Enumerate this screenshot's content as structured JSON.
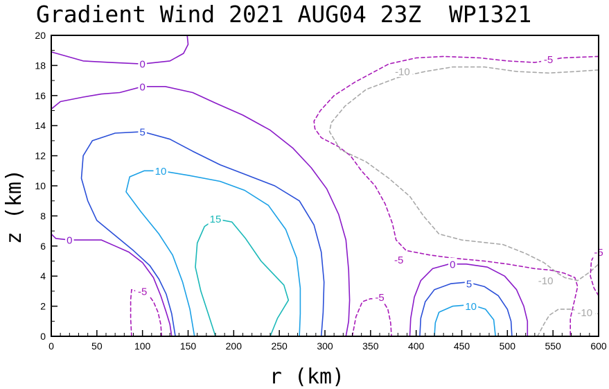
{
  "chart_data": {
    "type": "contour",
    "title": "Gradient Wind 2021 AUG04 23Z  WP1321",
    "xlabel": "r (km)",
    "ylabel": "z (km)",
    "xlim": [
      0,
      600
    ],
    "ylim": [
      0,
      20
    ],
    "xticks": [
      0,
      50,
      100,
      150,
      200,
      250,
      300,
      350,
      400,
      450,
      500,
      550,
      600
    ],
    "yticks": [
      0,
      2,
      4,
      6,
      8,
      10,
      12,
      14,
      16,
      18,
      20
    ],
    "colors": {
      "c0": "#8a1ac8",
      "c5": "#2a4fd8",
      "c10": "#1aa0e6",
      "c15": "#1ab8b8",
      "cn5": "#a81ab8",
      "cn10": "#a8a8a8"
    },
    "contours": [
      {
        "name": "contour-0-top-left",
        "level": 0,
        "color": "c0",
        "dashed": false,
        "points": [
          [
            0,
            18.9
          ],
          [
            35,
            18.3
          ],
          [
            65,
            18.2
          ],
          [
            100,
            18.1
          ],
          [
            130,
            18.3
          ],
          [
            145,
            18.8
          ],
          [
            150,
            19.4
          ],
          [
            149,
            20
          ]
        ]
      },
      {
        "name": "contour-0-upper",
        "level": 0,
        "color": "c0",
        "dashed": false,
        "points": [
          [
            0,
            15.1
          ],
          [
            10,
            15.6
          ],
          [
            35,
            15.9
          ],
          [
            55,
            16.1
          ],
          [
            75,
            16.2
          ],
          [
            100,
            16.6
          ],
          [
            125,
            16.6
          ],
          [
            155,
            16.2
          ],
          [
            180,
            15.5
          ],
          [
            210,
            14.7
          ],
          [
            240,
            13.7
          ],
          [
            265,
            12.5
          ],
          [
            285,
            11.2
          ],
          [
            302,
            9.8
          ],
          [
            315,
            8.1
          ],
          [
            323,
            6.4
          ],
          [
            326,
            4.4
          ],
          [
            327,
            2.4
          ],
          [
            326,
            1.0
          ],
          [
            323,
            0
          ]
        ]
      },
      {
        "name": "contour-0-lower-left",
        "level": 0,
        "color": "c0",
        "dashed": false,
        "points": [
          [
            0,
            6.8
          ],
          [
            5,
            6.5
          ],
          [
            20,
            6.4
          ],
          [
            55,
            6.4
          ],
          [
            70,
            6.0
          ],
          [
            85,
            5.6
          ],
          [
            100,
            4.9
          ],
          [
            112,
            3.9
          ],
          [
            120,
            2.7
          ],
          [
            126,
            1.6
          ],
          [
            130,
            0.8
          ],
          [
            132,
            0
          ]
        ]
      },
      {
        "name": "contour-5-outer",
        "level": 5,
        "color": "c5",
        "dashed": false,
        "points": [
          [
            136,
            0
          ],
          [
            132,
            1.5
          ],
          [
            126,
            2.8
          ],
          [
            118,
            3.8
          ],
          [
            108,
            4.7
          ],
          [
            90,
            5.7
          ],
          [
            68,
            6.8
          ],
          [
            50,
            7.7
          ],
          [
            40,
            9.0
          ],
          [
            33,
            10.5
          ],
          [
            35,
            12.0
          ],
          [
            45,
            13.0
          ],
          [
            70,
            13.5
          ],
          [
            100,
            13.6
          ],
          [
            130,
            13.1
          ],
          [
            155,
            12.3
          ],
          [
            185,
            11.4
          ],
          [
            215,
            10.7
          ],
          [
            245,
            10.0
          ],
          [
            272,
            9.0
          ],
          [
            288,
            7.4
          ],
          [
            296,
            5.6
          ],
          [
            299,
            3.6
          ],
          [
            298,
            1.6
          ],
          [
            296,
            0
          ]
        ]
      },
      {
        "name": "contour-10-outer",
        "level": 10,
        "color": "c10",
        "dashed": false,
        "points": [
          [
            157,
            0
          ],
          [
            152,
            1.8
          ],
          [
            144,
            3.6
          ],
          [
            133,
            5.4
          ],
          [
            118,
            6.8
          ],
          [
            98,
            8.3
          ],
          [
            82,
            9.6
          ],
          [
            86,
            10.6
          ],
          [
            102,
            11.0
          ],
          [
            120,
            11.0
          ],
          [
            150,
            10.7
          ],
          [
            185,
            10.3
          ],
          [
            212,
            9.7
          ],
          [
            238,
            8.7
          ],
          [
            257,
            7.1
          ],
          [
            269,
            5.2
          ],
          [
            273,
            3.2
          ],
          [
            273,
            1.5
          ],
          [
            272,
            0
          ]
        ]
      },
      {
        "name": "contour-15-core",
        "level": 15,
        "color": "c15",
        "dashed": false,
        "points": [
          [
            180,
            0
          ],
          [
            172,
            1.5
          ],
          [
            164,
            3.0
          ],
          [
            158,
            4.6
          ],
          [
            160,
            6.2
          ],
          [
            168,
            7.3
          ],
          [
            180,
            7.8
          ],
          [
            198,
            7.6
          ],
          [
            213,
            6.5
          ],
          [
            230,
            5.0
          ],
          [
            255,
            3.4
          ],
          [
            260,
            2.4
          ],
          [
            248,
            1.2
          ],
          [
            240,
            0
          ]
        ]
      },
      {
        "name": "contour-neg5-upper-right",
        "level": -5,
        "color": "cn5",
        "dashed": true,
        "points": [
          [
            600,
            18.6
          ],
          [
            560,
            18.5
          ],
          [
            530,
            18.2
          ],
          [
            500,
            18.3
          ],
          [
            470,
            18.5
          ],
          [
            430,
            18.6
          ],
          [
            400,
            18.5
          ],
          [
            370,
            18.1
          ],
          [
            333,
            16.9
          ],
          [
            310,
            16.0
          ],
          [
            295,
            15.0
          ],
          [
            288,
            14.3
          ],
          [
            289,
            13.8
          ],
          [
            296,
            13.2
          ],
          [
            315,
            12.6
          ],
          [
            328,
            12.0
          ],
          [
            340,
            11.0
          ],
          [
            355,
            10.0
          ],
          [
            366,
            8.8
          ],
          [
            374,
            7.5
          ],
          [
            378,
            6.4
          ],
          [
            389,
            5.7
          ],
          [
            415,
            5.4
          ],
          [
            440,
            5.2
          ],
          [
            475,
            5.0
          ],
          [
            500,
            4.8
          ],
          [
            530,
            4.5
          ],
          [
            547,
            4.4
          ],
          [
            562,
            4.2
          ],
          [
            574,
            3.9
          ],
          [
            577,
            3.3
          ],
          [
            574,
            2.5
          ],
          [
            569,
            1.2
          ],
          [
            569,
            0
          ]
        ]
      },
      {
        "name": "contour-neg10-upper-right",
        "level": -10,
        "color": "cn10",
        "dashed": true,
        "points": [
          [
            600,
            17.7
          ],
          [
            575,
            17.6
          ],
          [
            545,
            17.5
          ],
          [
            510,
            17.6
          ],
          [
            475,
            17.9
          ],
          [
            440,
            17.9
          ],
          [
            410,
            17.6
          ],
          [
            380,
            17.2
          ],
          [
            345,
            16.4
          ],
          [
            322,
            15.3
          ],
          [
            307,
            14.2
          ],
          [
            305,
            13.6
          ],
          [
            317,
            12.4
          ],
          [
            345,
            11.6
          ],
          [
            370,
            10.5
          ],
          [
            393,
            9.3
          ],
          [
            408,
            8.0
          ],
          [
            425,
            6.8
          ],
          [
            450,
            6.4
          ],
          [
            495,
            6.1
          ],
          [
            520,
            5.5
          ],
          [
            540,
            4.9
          ],
          [
            555,
            4.2
          ],
          [
            563,
            3.9
          ],
          [
            577,
            3.7
          ],
          [
            591,
            4.3
          ],
          [
            600,
            4.8
          ]
        ]
      },
      {
        "name": "contour-neg5-left",
        "level": -5,
        "color": "cn5",
        "dashed": true,
        "points": [
          [
            88,
            0
          ],
          [
            87,
            1.2
          ],
          [
            87,
            2.4
          ],
          [
            88,
            3.1
          ],
          [
            93,
            3.0
          ],
          [
            100,
            3.0
          ],
          [
            106,
            2.8
          ],
          [
            112,
            2.3
          ],
          [
            117,
            1.6
          ],
          [
            120,
            0.8
          ],
          [
            121,
            0
          ]
        ]
      },
      {
        "name": "contour-neg5-middle",
        "level": -5,
        "color": "cn5",
        "dashed": true,
        "points": [
          [
            330,
            0
          ],
          [
            334,
            1.3
          ],
          [
            341,
            2.3
          ],
          [
            350,
            2.5
          ],
          [
            362,
            2.5
          ],
          [
            369,
            1.8
          ],
          [
            372,
            0.9
          ],
          [
            373,
            0
          ]
        ]
      },
      {
        "name": "contour-0-right",
        "level": 0,
        "color": "c0",
        "dashed": false,
        "points": [
          [
            393,
            0
          ],
          [
            394,
            1.2
          ],
          [
            398,
            2.6
          ],
          [
            405,
            3.7
          ],
          [
            418,
            4.5
          ],
          [
            436,
            4.8
          ],
          [
            455,
            4.8
          ],
          [
            478,
            4.6
          ],
          [
            497,
            4.0
          ],
          [
            510,
            3.1
          ],
          [
            518,
            2.0
          ],
          [
            522,
            1.0
          ],
          [
            522,
            0
          ]
        ]
      },
      {
        "name": "contour-5-right",
        "level": 5,
        "color": "c5",
        "dashed": false,
        "points": [
          [
            404,
            0
          ],
          [
            405,
            1.2
          ],
          [
            410,
            2.3
          ],
          [
            420,
            3.1
          ],
          [
            438,
            3.5
          ],
          [
            456,
            3.6
          ],
          [
            475,
            3.3
          ],
          [
            490,
            2.7
          ],
          [
            500,
            1.8
          ],
          [
            504,
            1.0
          ],
          [
            505,
            0
          ]
        ]
      },
      {
        "name": "contour-10-right",
        "level": 10,
        "color": "c10",
        "dashed": false,
        "points": [
          [
            420,
            0
          ],
          [
            421,
            0.9
          ],
          [
            425,
            1.6
          ],
          [
            440,
            2.0
          ],
          [
            460,
            2.1
          ],
          [
            476,
            1.8
          ],
          [
            485,
            1.1
          ],
          [
            487,
            0
          ]
        ]
      },
      {
        "name": "contour-neg5-far-right",
        "level": -5,
        "color": "cn5",
        "dashed": true,
        "points": [
          [
            600,
            2.7
          ],
          [
            595,
            3.2
          ],
          [
            591,
            4.0
          ],
          [
            592,
            5.0
          ],
          [
            596,
            5.5
          ],
          [
            600,
            5.6
          ]
        ]
      },
      {
        "name": "contour-neg10-lower-right",
        "level": -10,
        "color": "cn10",
        "dashed": true,
        "points": [
          [
            533,
            0
          ],
          [
            540,
            0.8
          ],
          [
            546,
            1.4
          ],
          [
            556,
            1.8
          ],
          [
            570,
            1.8
          ],
          [
            585,
            1.6
          ],
          [
            595,
            1.5
          ],
          [
            600,
            1.5
          ]
        ]
      }
    ],
    "contour_labels": [
      {
        "text": "0",
        "x": 100,
        "y": 18.1,
        "color": "c0"
      },
      {
        "text": "0",
        "x": 100,
        "y": 16.6,
        "color": "c0"
      },
      {
        "text": "5",
        "x": 100,
        "y": 13.6,
        "color": "c5"
      },
      {
        "text": "10",
        "x": 120,
        "y": 11.0,
        "color": "c10"
      },
      {
        "text": "15",
        "x": 180,
        "y": 7.8,
        "color": "c15"
      },
      {
        "text": "0",
        "x": 20,
        "y": 6.4,
        "color": "c0"
      },
      {
        "text": "-5",
        "x": 100,
        "y": 3.0,
        "color": "cn5"
      },
      {
        "text": "-10",
        "x": 385,
        "y": 17.6,
        "color": "cn10"
      },
      {
        "text": "-5",
        "x": 545,
        "y": 18.4,
        "color": "cn5"
      },
      {
        "text": "-5",
        "x": 381,
        "y": 5.1,
        "color": "cn5"
      },
      {
        "text": "0",
        "x": 440,
        "y": 4.8,
        "color": "c0"
      },
      {
        "text": "5",
        "x": 458,
        "y": 3.5,
        "color": "c5"
      },
      {
        "text": "10",
        "x": 460,
        "y": 2.0,
        "color": "c10"
      },
      {
        "text": "-5",
        "x": 360,
        "y": 2.6,
        "color": "cn5"
      },
      {
        "text": "-10",
        "x": 542,
        "y": 3.7,
        "color": "cn10"
      },
      {
        "text": "-10",
        "x": 585,
        "y": 1.6,
        "color": "cn10"
      },
      {
        "text": "-5",
        "x": 600,
        "y": 5.6,
        "color": "cn5"
      }
    ]
  }
}
